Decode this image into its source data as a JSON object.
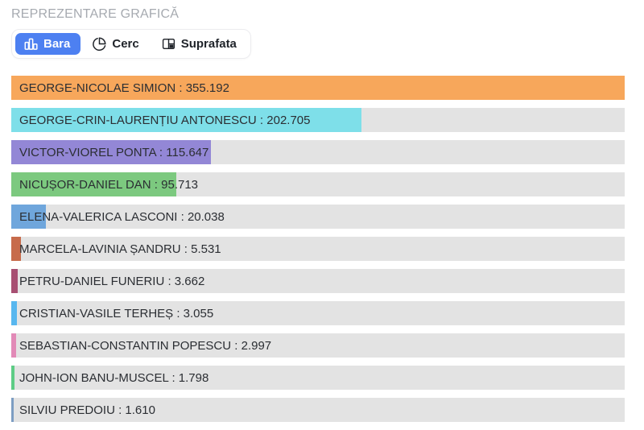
{
  "page": {
    "title": "REPREZENTARE GRAFICĂ"
  },
  "toolbar": {
    "tabs": [
      {
        "label": "Bara",
        "icon": "bar-chart-icon",
        "active": true
      },
      {
        "label": "Cerc",
        "icon": "pie-chart-icon",
        "active": false
      },
      {
        "label": "Suprafata",
        "icon": "area-layout-icon",
        "active": false
      }
    ],
    "active_tab_color": "#4d80f1"
  },
  "chart_data": {
    "type": "bar",
    "orientation": "horizontal",
    "title": "REPREZENTARE GRAFICĂ",
    "xlabel": "",
    "ylabel": "",
    "xlim": [
      0,
      355192
    ],
    "grid": false,
    "legend": "none",
    "track_color": "#e3e3e3",
    "label_format": "{name} : {value}",
    "categories": [
      "GEORGE-NICOLAE SIMION",
      "GEORGE-CRIN-LAURENȚIU ANTONESCU",
      "VICTOR-VIOREL PONTA",
      "NICUȘOR-DANIEL DAN",
      "ELENA-VALERICA LASCONI",
      "MARCELA-LAVINIA ȘANDRU",
      "PETRU-DANIEL FUNERIU",
      "CRISTIAN-VASILE TERHEȘ",
      "SEBASTIAN-CONSTANTIN POPESCU",
      "JOHN-ION BANU-MUSCEL",
      "SILVIU PREDOIU"
    ],
    "values": [
      355192,
      202705,
      115647,
      95713,
      20038,
      5531,
      3662,
      3055,
      2997,
      1798,
      1610
    ],
    "display_values": [
      "355.192",
      "202.705",
      "115.647",
      "95.713",
      "20.038",
      "5.531",
      "3.662",
      "3.055",
      "2.997",
      "1.798",
      "1.610"
    ],
    "bar_colors": [
      "#f7a75b",
      "#7edfe9",
      "#9387d6",
      "#7cc97f",
      "#6fa6dc",
      "#c76b4b",
      "#a74f72",
      "#58b7ef",
      "#e28ab7",
      "#5ecc85",
      "#7d9dc2"
    ]
  }
}
